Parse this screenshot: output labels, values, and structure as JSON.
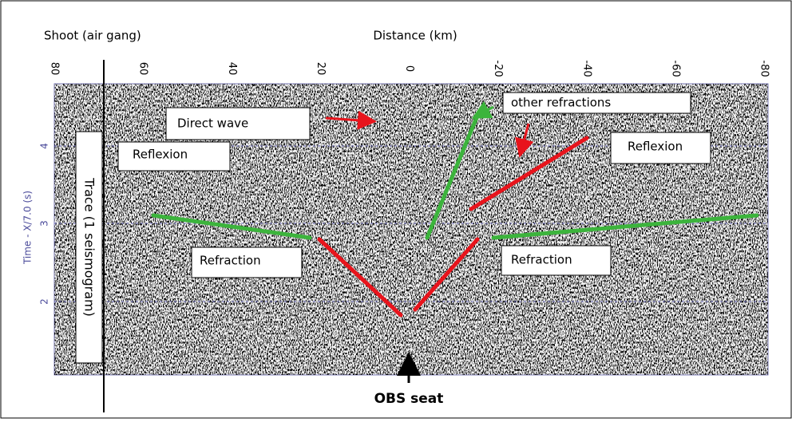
{
  "header": {
    "left": "Shoot (air gang)",
    "center": "Distance  (km)"
  },
  "x_axis": {
    "ticks": [
      "80",
      "60",
      "40",
      "20",
      "0",
      "-20",
      "-40",
      "-60",
      "-80"
    ]
  },
  "y_axis": {
    "title": "Time - X/7.0 (s)",
    "ticks": [
      "4",
      "3",
      "2"
    ]
  },
  "annotations": {
    "direct_wave": "Direct wave",
    "other_refractions": "other refractions",
    "reflexion_left": "Reflexion",
    "reflexion_right": "Reflexion",
    "refraction_left": "Refraction",
    "refraction_right": "Refraction",
    "trace": "Trace (1 seismogram)",
    "obs": "OBS seat"
  }
}
